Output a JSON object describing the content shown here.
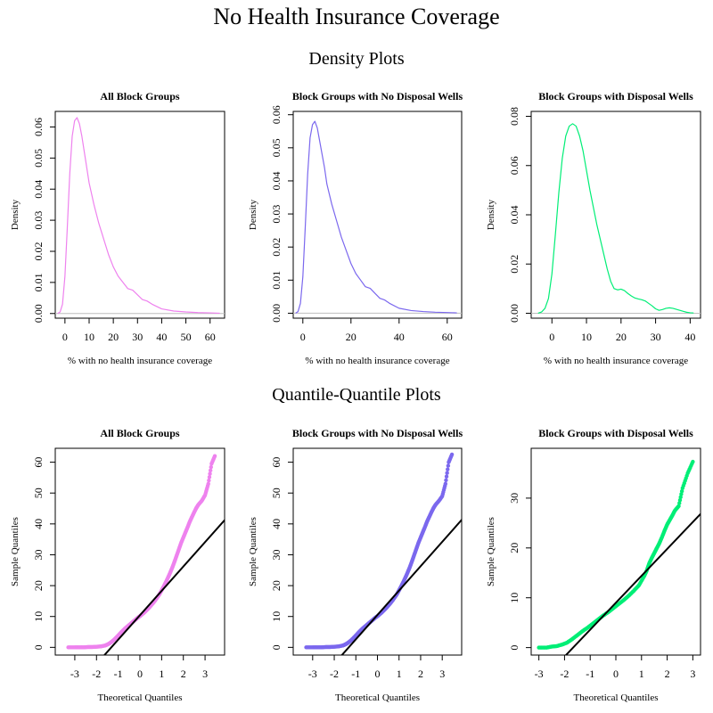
{
  "title": "No Health Insurance Coverage",
  "section_titles": {
    "density": "Density Plots",
    "qq": "Quantile-Quantile Plots"
  },
  "chart_data": [
    {
      "type": "line",
      "kind": "density",
      "title": "All Block Groups",
      "xlabel": "% with no health insurance coverage",
      "ylabel": "Density",
      "color": "#ee82ee",
      "xlim": [
        -4,
        66
      ],
      "ylim": [
        -0.0015,
        0.065
      ],
      "xticks": [
        0,
        10,
        20,
        30,
        40,
        50,
        60
      ],
      "yticks": [
        0.0,
        0.01,
        0.02,
        0.03,
        0.04,
        0.05,
        0.06
      ],
      "ytick_labels": [
        "0.00",
        "0.01",
        "0.02",
        "0.03",
        "0.04",
        "0.05",
        "0.06"
      ],
      "x": [
        -3,
        -2,
        -1,
        0,
        1,
        2,
        3,
        4,
        5,
        6,
        7,
        8,
        9,
        10,
        12,
        14,
        16,
        18,
        20,
        22,
        24,
        26,
        28,
        30,
        32,
        34,
        36,
        40,
        45,
        50,
        55,
        60,
        64
      ],
      "y": [
        0.0,
        0.0005,
        0.003,
        0.012,
        0.028,
        0.045,
        0.057,
        0.062,
        0.063,
        0.061,
        0.057,
        0.052,
        0.047,
        0.042,
        0.035,
        0.029,
        0.024,
        0.019,
        0.015,
        0.012,
        0.01,
        0.008,
        0.0075,
        0.006,
        0.0045,
        0.004,
        0.003,
        0.0015,
        0.0008,
        0.0005,
        0.0003,
        0.0002,
        0.0001
      ]
    },
    {
      "type": "line",
      "kind": "density",
      "title": "Block Groups with No Disposal Wells",
      "xlabel": "% with no health insurance coverage",
      "ylabel": "Density",
      "color": "#7b68ee",
      "xlim": [
        -4,
        66
      ],
      "ylim": [
        -0.0015,
        0.061
      ],
      "xticks": [
        0,
        20,
        40,
        60
      ],
      "yticks": [
        0.0,
        0.01,
        0.02,
        0.03,
        0.04,
        0.05,
        0.06
      ],
      "ytick_labels": [
        "0.00",
        "0.01",
        "0.02",
        "0.03",
        "0.04",
        "0.05",
        "0.06"
      ],
      "x": [
        -3,
        -2,
        -1,
        0,
        1,
        2,
        3,
        4,
        5,
        6,
        7,
        8,
        9,
        10,
        12,
        14,
        16,
        18,
        20,
        22,
        24,
        26,
        28,
        30,
        32,
        34,
        36,
        40,
        45,
        50,
        55,
        60,
        64
      ],
      "y": [
        0.0,
        0.0005,
        0.003,
        0.011,
        0.026,
        0.042,
        0.053,
        0.057,
        0.058,
        0.056,
        0.052,
        0.048,
        0.044,
        0.039,
        0.033,
        0.028,
        0.023,
        0.019,
        0.015,
        0.012,
        0.01,
        0.008,
        0.0075,
        0.006,
        0.0045,
        0.004,
        0.003,
        0.0015,
        0.0008,
        0.0005,
        0.0003,
        0.0002,
        0.0001
      ]
    },
    {
      "type": "line",
      "kind": "density",
      "title": "Block Groups with Disposal Wells",
      "xlabel": "% with no health insurance coverage",
      "ylabel": "Density",
      "color": "#00ee76",
      "xlim": [
        -6,
        43
      ],
      "ylim": [
        -0.002,
        0.082
      ],
      "xticks": [
        0,
        10,
        20,
        30,
        40
      ],
      "yticks": [
        0.0,
        0.02,
        0.04,
        0.06,
        0.08
      ],
      "ytick_labels": [
        "0.00",
        "0.02",
        "0.04",
        "0.06",
        "0.08"
      ],
      "x": [
        -4,
        -3,
        -2,
        -1,
        0,
        1,
        2,
        3,
        4,
        5,
        6,
        7,
        8,
        9,
        10,
        11,
        12,
        13,
        14,
        15,
        16,
        17,
        18,
        19,
        20,
        21,
        22,
        23,
        24,
        25,
        26,
        27,
        28,
        29,
        30,
        31,
        32,
        33,
        34,
        35,
        36,
        37,
        38,
        39,
        40,
        41
      ],
      "y": [
        0.0,
        0.0005,
        0.002,
        0.006,
        0.016,
        0.032,
        0.049,
        0.063,
        0.072,
        0.076,
        0.077,
        0.076,
        0.072,
        0.066,
        0.058,
        0.05,
        0.043,
        0.036,
        0.03,
        0.024,
        0.018,
        0.013,
        0.01,
        0.0095,
        0.0098,
        0.0092,
        0.008,
        0.007,
        0.0062,
        0.0058,
        0.0055,
        0.005,
        0.004,
        0.003,
        0.0018,
        0.0012,
        0.0015,
        0.002,
        0.0022,
        0.002,
        0.0016,
        0.0012,
        0.0008,
        0.0004,
        0.0002,
        0.0001
      ]
    },
    {
      "type": "scatter",
      "kind": "qq",
      "title": "All Block Groups",
      "xlabel": "Theoretical Quantiles",
      "ylabel": "Sample Quantiles",
      "color": "#ee82ee",
      "xlim": [
        -3.9,
        3.9
      ],
      "ylim": [
        -2.5,
        64.5
      ],
      "xticks": [
        -3,
        -2,
        -1,
        0,
        1,
        2,
        3
      ],
      "yticks": [
        0,
        10,
        20,
        30,
        40,
        50,
        60
      ],
      "ref_line": {
        "intercept": 10.4,
        "slope": 7.9
      },
      "x": [
        -3.3,
        -3.0,
        -2.8,
        -2.6,
        -2.4,
        -2.2,
        -2.0,
        -1.8,
        -1.6,
        -1.5,
        -1.4,
        -1.3,
        -1.2,
        -1.1,
        -1.0,
        -0.9,
        -0.8,
        -0.7,
        -0.6,
        -0.5,
        -0.4,
        -0.3,
        -0.2,
        -0.1,
        0.0,
        0.1,
        0.2,
        0.3,
        0.4,
        0.5,
        0.6,
        0.7,
        0.8,
        0.9,
        1.0,
        1.1,
        1.2,
        1.3,
        1.4,
        1.5,
        1.6,
        1.7,
        1.8,
        1.9,
        2.0,
        2.1,
        2.2,
        2.3,
        2.4,
        2.5,
        2.6,
        2.7,
        2.85,
        3.0,
        3.15,
        3.3,
        3.45
      ],
      "y": [
        0.0,
        0.0,
        0.0,
        0.0,
        0.1,
        0.1,
        0.2,
        0.3,
        0.6,
        0.9,
        1.3,
        1.8,
        2.4,
        3.1,
        3.8,
        4.6,
        5.3,
        6.0,
        6.6,
        7.2,
        7.8,
        8.4,
        9.0,
        9.6,
        10.1,
        10.7,
        11.3,
        12.0,
        12.7,
        13.5,
        14.3,
        15.2,
        16.2,
        17.2,
        18.5,
        19.8,
        21.2,
        22.7,
        24.3,
        26.0,
        27.9,
        29.9,
        31.9,
        33.9,
        35.6,
        37.3,
        39.0,
        40.8,
        42.3,
        43.8,
        45.2,
        46.3,
        47.5,
        49.3,
        53.0,
        59.5,
        62.0
      ]
    },
    {
      "type": "scatter",
      "kind": "qq",
      "title": "Block Groups with No Disposal Wells",
      "xlabel": "Theoretical Quantiles",
      "ylabel": "Sample Quantiles",
      "color": "#7b68ee",
      "xlim": [
        -3.9,
        3.9
      ],
      "ylim": [
        -2.5,
        64.5
      ],
      "xticks": [
        -3,
        -2,
        -1,
        0,
        1,
        2,
        3
      ],
      "yticks": [
        0,
        10,
        20,
        30,
        40,
        50,
        60
      ],
      "ref_line": {
        "intercept": 10.5,
        "slope": 7.9
      },
      "x": [
        -3.3,
        -3.0,
        -2.8,
        -2.6,
        -2.4,
        -2.2,
        -2.0,
        -1.8,
        -1.6,
        -1.5,
        -1.4,
        -1.3,
        -1.2,
        -1.1,
        -1.0,
        -0.9,
        -0.8,
        -0.7,
        -0.6,
        -0.5,
        -0.4,
        -0.3,
        -0.2,
        -0.1,
        0.0,
        0.1,
        0.2,
        0.3,
        0.4,
        0.5,
        0.6,
        0.7,
        0.8,
        0.9,
        1.0,
        1.1,
        1.2,
        1.3,
        1.4,
        1.5,
        1.6,
        1.7,
        1.8,
        1.9,
        2.0,
        2.1,
        2.2,
        2.3,
        2.4,
        2.5,
        2.6,
        2.7,
        2.85,
        3.0,
        3.15,
        3.3,
        3.45
      ],
      "y": [
        0.0,
        0.0,
        0.0,
        0.0,
        0.1,
        0.1,
        0.2,
        0.3,
        0.6,
        0.9,
        1.3,
        1.8,
        2.4,
        3.1,
        3.8,
        4.6,
        5.3,
        6.0,
        6.6,
        7.2,
        7.8,
        8.4,
        9.0,
        9.6,
        10.1,
        10.7,
        11.3,
        12.0,
        12.7,
        13.5,
        14.3,
        15.2,
        16.2,
        17.2,
        18.5,
        19.8,
        21.2,
        22.7,
        24.3,
        26.0,
        27.9,
        29.9,
        31.9,
        33.9,
        35.6,
        37.3,
        39.0,
        40.8,
        42.3,
        43.8,
        45.2,
        46.3,
        47.5,
        49.0,
        53.0,
        60.0,
        62.5
      ]
    },
    {
      "type": "scatter",
      "kind": "qq",
      "title": "Block Groups with Disposal Wells",
      "xlabel": "Theoretical Quantiles",
      "ylabel": "Sample Quantiles",
      "color": "#00ee76",
      "xlim": [
        -3.3,
        3.3
      ],
      "ylim": [
        -1.5,
        40.0
      ],
      "xticks": [
        -3,
        -2,
        -1,
        0,
        1,
        2,
        3
      ],
      "yticks": [
        0,
        10,
        20,
        30
      ],
      "ref_line": {
        "intercept": 9.0,
        "slope": 5.4
      },
      "x": [
        -3.0,
        -2.7,
        -2.5,
        -2.3,
        -2.1,
        -1.9,
        -1.7,
        -1.5,
        -1.3,
        -1.1,
        -0.9,
        -0.7,
        -0.5,
        -0.3,
        -0.1,
        0.1,
        0.3,
        0.5,
        0.7,
        0.9,
        1.1,
        1.2,
        1.3,
        1.4,
        1.5,
        1.6,
        1.7,
        1.8,
        1.9,
        2.0,
        2.1,
        2.2,
        2.3,
        2.45,
        2.6,
        2.8,
        3.0
      ],
      "y": [
        0.0,
        0.0,
        0.2,
        0.3,
        0.6,
        1.0,
        1.7,
        2.5,
        3.3,
        4.0,
        4.8,
        5.6,
        6.4,
        7.1,
        7.9,
        8.7,
        9.5,
        10.4,
        11.4,
        12.5,
        14.3,
        15.4,
        16.9,
        18.0,
        19.0,
        20.0,
        21.0,
        22.2,
        23.5,
        24.7,
        25.6,
        26.5,
        27.5,
        28.4,
        32.0,
        35.0,
        37.3
      ]
    }
  ]
}
